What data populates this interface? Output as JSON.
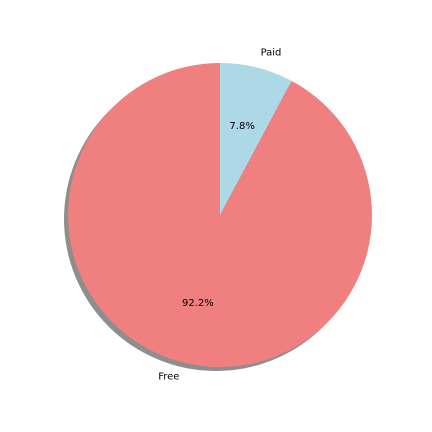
{
  "chart_data": {
    "type": "pie",
    "slices": [
      {
        "label": "Free",
        "value": 92.2,
        "pct_label": "92.2%",
        "color": "#f08080"
      },
      {
        "label": "Paid",
        "value": 7.8,
        "pct_label": "7.8%",
        "color": "#add8e6"
      }
    ],
    "start_angle_deg": 90,
    "direction": "counterclockwise",
    "shadow": true,
    "title": "",
    "legend": "none"
  }
}
